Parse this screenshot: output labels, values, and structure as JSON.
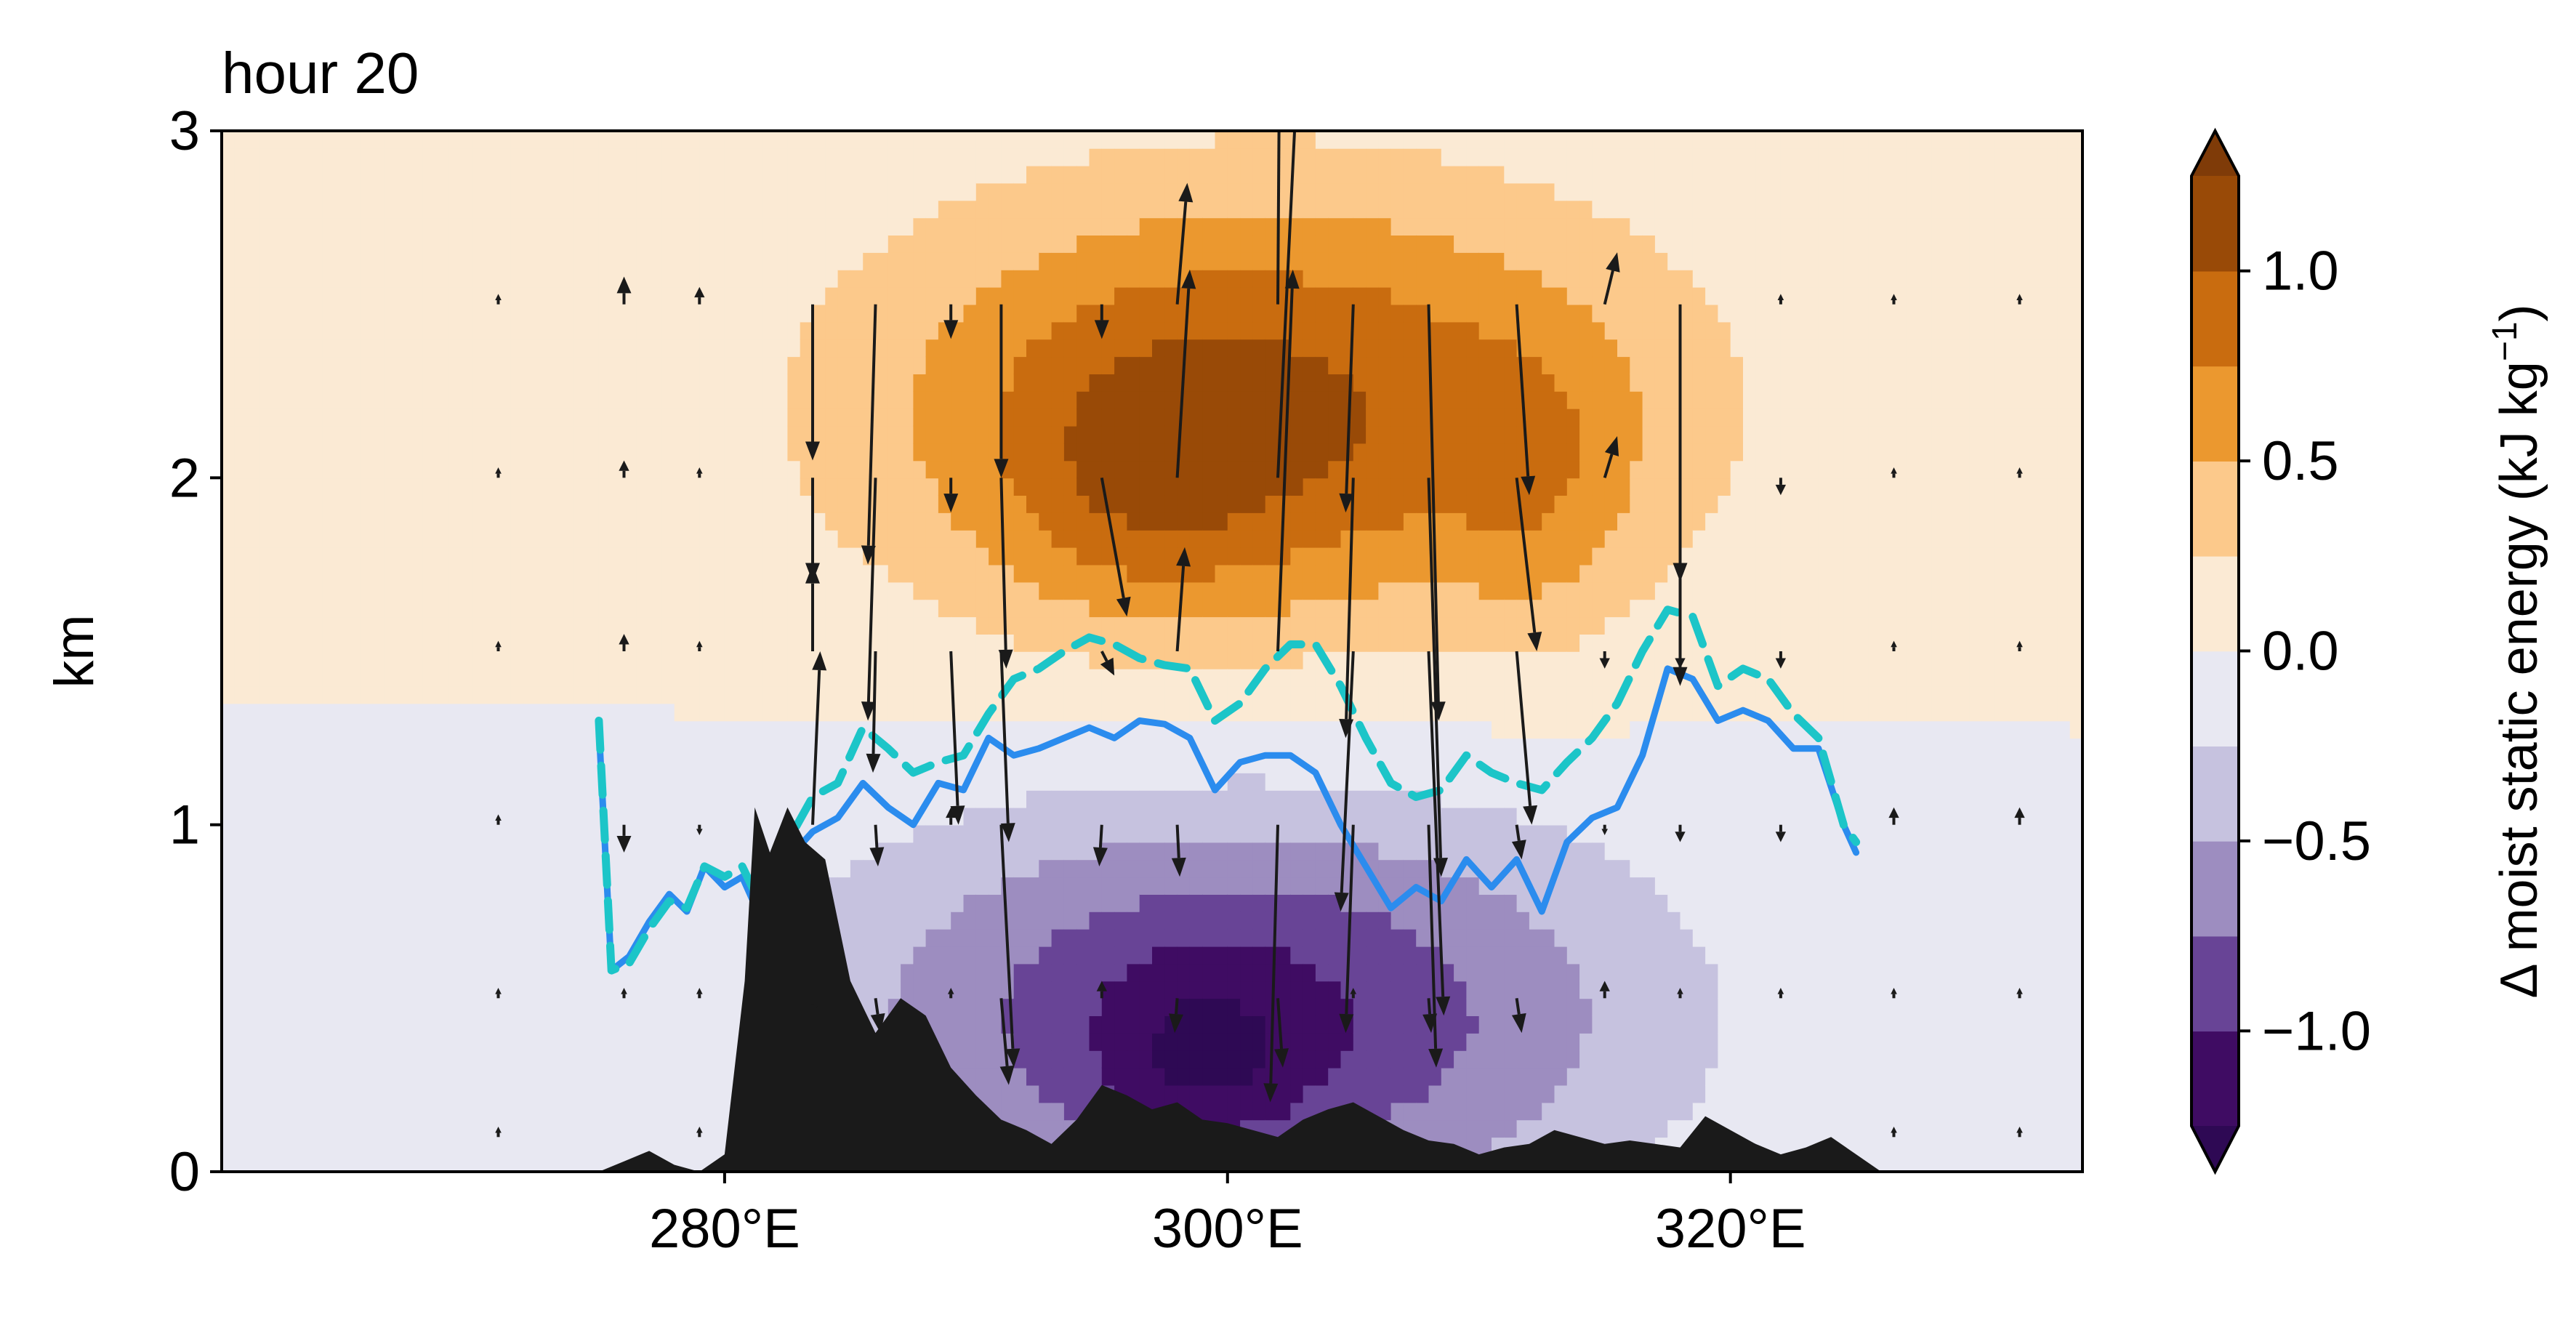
{
  "chart_data": {
    "type": "contour",
    "title": "hour 20",
    "xlabel": "",
    "ylabel": "km",
    "xlim": [
      260,
      334
    ],
    "ylim": [
      0,
      3
    ],
    "x_ticks": [
      280,
      300,
      320
    ],
    "x_tick_labels": [
      "280°E",
      "300°E",
      "320°E"
    ],
    "y_ticks": [
      0,
      1,
      2,
      3
    ],
    "y_tick_labels": [
      "0",
      "1",
      "2",
      "3"
    ],
    "colorbar": {
      "label": "Δ moist static energy (kJ kg⁻¹)",
      "label_main": "Δ moist static energy (kJ kg",
      "label_sup": "−1",
      "label_end": ")",
      "levels": [
        -1.25,
        -1.0,
        -0.75,
        -0.5,
        -0.25,
        0.0,
        0.25,
        0.5,
        0.75,
        1.0,
        1.25
      ],
      "colors": [
        "#3f0c63",
        "#684496",
        "#9d8dc0",
        "#c6c2df",
        "#e8e8f2",
        "#fbead4",
        "#fcc98b",
        "#eb982f",
        "#c96c0f",
        "#994a07"
      ],
      "under_color": "#2e0954",
      "over_color": "#7f3b08",
      "ticks": [
        -1.0,
        -0.5,
        0.0,
        0.5,
        1.0
      ],
      "tick_labels": [
        "−1.0",
        "−0.5",
        "0.0",
        "0.5",
        "1.0"
      ]
    },
    "anomaly_field": {
      "description": "Δ moist static energy blobs (value, lon center, height center km, lon half-width, height half-width km)",
      "blobs": [
        {
          "value": 1.05,
          "lon": 301.5,
          "z": 2.2,
          "dlon": 16.0,
          "dz": 0.65
        },
        {
          "value": 0.3,
          "lon": 296.5,
          "z": 1.95,
          "dlon": 5.5,
          "dz": 0.4
        },
        {
          "value": 0.25,
          "lon": 312.5,
          "z": 1.95,
          "dlon": 3.5,
          "dz": 0.45
        },
        {
          "value": -1.05,
          "lon": 300.5,
          "z": 0.45,
          "dlon": 16.0,
          "dz": 0.62
        },
        {
          "value": -0.35,
          "lon": 299.0,
          "z": 0.3,
          "dlon": 4.0,
          "dz": 0.28
        }
      ]
    },
    "series": [
      {
        "style": "solid",
        "color": "#2b8cee",
        "x": [
          275.0,
          275.5,
          276.2,
          277.0,
          277.8,
          278.5,
          279.2,
          280.0,
          280.7,
          281.5,
          282.5,
          283.5,
          284.5,
          285.5,
          286.5,
          287.5,
          288.5,
          289.5,
          290.5,
          291.5,
          292.5,
          293.5,
          294.5,
          295.5,
          296.5,
          297.5,
          298.5,
          299.5,
          300.5,
          301.5,
          302.5,
          303.5,
          304.5,
          305.5,
          306.5,
          307.5,
          308.5,
          309.5,
          310.5,
          311.5,
          312.5,
          313.5,
          314.5,
          315.5,
          316.5,
          317.5,
          318.5,
          319.5,
          320.5,
          321.5,
          322.5,
          323.5,
          324.5,
          325.0
        ],
        "y": [
          1.28,
          0.58,
          0.62,
          0.72,
          0.8,
          0.75,
          0.88,
          0.82,
          0.85,
          0.72,
          0.9,
          0.98,
          1.02,
          1.12,
          1.05,
          1.0,
          1.12,
          1.1,
          1.25,
          1.2,
          1.22,
          1.25,
          1.28,
          1.25,
          1.3,
          1.29,
          1.25,
          1.1,
          1.18,
          1.2,
          1.2,
          1.15,
          1.0,
          0.88,
          0.76,
          0.82,
          0.78,
          0.9,
          0.82,
          0.9,
          0.75,
          0.95,
          1.02,
          1.05,
          1.2,
          1.45,
          1.42,
          1.3,
          1.33,
          1.3,
          1.22,
          1.22,
          1.0,
          0.92
        ]
      },
      {
        "style": "dashed",
        "color": "#1cc5c8",
        "x": [
          275.0,
          275.5,
          276.2,
          277.0,
          277.8,
          278.5,
          279.2,
          280.0,
          280.7,
          281.5,
          282.5,
          283.5,
          284.5,
          285.5,
          286.5,
          287.5,
          288.5,
          289.5,
          290.5,
          291.5,
          292.5,
          293.5,
          294.5,
          295.5,
          296.5,
          297.5,
          298.5,
          299.5,
          300.5,
          301.5,
          302.5,
          303.5,
          304.5,
          305.5,
          306.5,
          307.5,
          308.5,
          309.5,
          310.5,
          311.5,
          312.5,
          313.5,
          314.5,
          315.5,
          316.5,
          317.5,
          318.5,
          319.5,
          320.5,
          321.5,
          322.5,
          323.5,
          324.5,
          325.0
        ],
        "y": [
          1.3,
          0.58,
          0.6,
          0.7,
          0.78,
          0.76,
          0.88,
          0.85,
          0.88,
          0.76,
          0.95,
          1.08,
          1.12,
          1.28,
          1.22,
          1.15,
          1.18,
          1.2,
          1.32,
          1.42,
          1.45,
          1.5,
          1.54,
          1.52,
          1.48,
          1.46,
          1.45,
          1.3,
          1.35,
          1.45,
          1.52,
          1.52,
          1.4,
          1.25,
          1.12,
          1.08,
          1.1,
          1.2,
          1.15,
          1.12,
          1.1,
          1.18,
          1.25,
          1.35,
          1.5,
          1.62,
          1.6,
          1.4,
          1.45,
          1.42,
          1.32,
          1.25,
          1.0,
          0.95
        ]
      }
    ],
    "terrain": {
      "color": "#1a1a1a",
      "x": [
        260,
        275.0,
        276.0,
        277.0,
        278.0,
        279.0,
        280.0,
        280.8,
        281.2,
        281.8,
        282.5,
        283.2,
        284.0,
        285.0,
        286.0,
        287.0,
        288.0,
        289.0,
        290.0,
        291.0,
        292.0,
        293.0,
        294.0,
        295.0,
        296.0,
        297.0,
        298.0,
        299.0,
        300.0,
        301.0,
        302.0,
        303.0,
        304.0,
        305.0,
        306.0,
        307.0,
        308.0,
        309.0,
        310.0,
        311.0,
        312.0,
        313.0,
        314.0,
        315.0,
        316.0,
        317.0,
        318.0,
        319.0,
        320.0,
        321.0,
        322.0,
        323.0,
        324.0,
        325.0,
        326.0,
        334
      ],
      "y": [
        0,
        0,
        0.03,
        0.06,
        0.02,
        0.0,
        0.05,
        0.55,
        1.05,
        0.92,
        1.05,
        0.95,
        0.9,
        0.55,
        0.4,
        0.5,
        0.45,
        0.3,
        0.22,
        0.15,
        0.12,
        0.08,
        0.15,
        0.25,
        0.22,
        0.18,
        0.2,
        0.15,
        0.14,
        0.12,
        0.1,
        0.15,
        0.18,
        0.2,
        0.16,
        0.12,
        0.09,
        0.08,
        0.05,
        0.07,
        0.08,
        0.12,
        0.1,
        0.08,
        0.09,
        0.08,
        0.07,
        0.16,
        0.12,
        0.08,
        0.05,
        0.07,
        0.1,
        0.05,
        0.0,
        0
      ]
    },
    "arrows": [
      [
        271,
        0.1,
        0,
        0.03
      ],
      [
        271,
        0.5,
        0,
        0.03
      ],
      [
        271,
        1.0,
        0,
        0.03
      ],
      [
        271,
        1.5,
        0,
        0.03
      ],
      [
        271,
        2.0,
        0,
        0.03
      ],
      [
        271,
        2.5,
        0,
        0.03
      ],
      [
        276,
        0.5,
        0,
        0.03
      ],
      [
        276,
        1.0,
        0,
        -0.08
      ],
      [
        276,
        1.5,
        0,
        0.05
      ],
      [
        276,
        2.0,
        0,
        0.05
      ],
      [
        276,
        2.5,
        0,
        0.08
      ],
      [
        279,
        0.1,
        0,
        0.03
      ],
      [
        279,
        0.5,
        0,
        0.03
      ],
      [
        279,
        1.0,
        0,
        -0.03
      ],
      [
        279,
        1.5,
        0,
        0.03
      ],
      [
        279,
        2.0,
        0,
        0.03
      ],
      [
        279,
        2.5,
        0,
        0.05
      ],
      [
        283.5,
        0.5,
        0,
        -0.05
      ],
      [
        283.5,
        1.0,
        0.3,
        0.5
      ],
      [
        283.5,
        1.5,
        0,
        0.25
      ],
      [
        283.5,
        2.0,
        0,
        -0.3
      ],
      [
        283.5,
        2.5,
        0,
        -0.45
      ],
      [
        286.0,
        0.5,
        0.2,
        -0.1
      ],
      [
        286.0,
        1.0,
        0.1,
        -0.12
      ],
      [
        286.0,
        1.5,
        -0.1,
        -0.35
      ],
      [
        286.0,
        2.0,
        -0.3,
        -0.7
      ],
      [
        286.0,
        2.5,
        -0.3,
        -0.75
      ],
      [
        289.0,
        0.5,
        0,
        0.03
      ],
      [
        289.0,
        1.0,
        0,
        0.05
      ],
      [
        289.0,
        1.5,
        0.3,
        -0.5
      ],
      [
        289.0,
        2.0,
        0,
        -0.1
      ],
      [
        289.0,
        2.5,
        0,
        -0.1
      ],
      [
        291.0,
        0.5,
        0.3,
        -0.25
      ],
      [
        291.0,
        1.0,
        0.5,
        -0.7
      ],
      [
        291.0,
        1.5,
        0.3,
        -0.55
      ],
      [
        291.0,
        2.0,
        0.2,
        -0.55
      ],
      [
        291.0,
        2.5,
        0,
        -0.5
      ],
      [
        295.0,
        0.5,
        0,
        0.05
      ],
      [
        295.0,
        1.0,
        -0.1,
        -0.12
      ],
      [
        295.0,
        1.5,
        0.5,
        -0.07
      ],
      [
        295.0,
        2.0,
        1.0,
        -0.4
      ],
      [
        295.0,
        2.5,
        0,
        -0.1
      ],
      [
        298.0,
        0.5,
        -0.1,
        -0.1
      ],
      [
        298.0,
        1.0,
        0.1,
        -0.15
      ],
      [
        298.0,
        1.5,
        0.3,
        0.3
      ],
      [
        298.0,
        2.0,
        0.5,
        0.6
      ],
      [
        298.0,
        2.5,
        0.4,
        0.35
      ],
      [
        302.0,
        0.5,
        0.2,
        -0.2
      ],
      [
        302.0,
        1.0,
        -0.3,
        -0.8
      ],
      [
        302.0,
        1.5,
        0.6,
        1.1
      ],
      [
        302.0,
        2.0,
        0.8,
        1.2
      ],
      [
        302.0,
        2.5,
        0.1,
        1.1
      ],
      [
        305.0,
        0.5,
        0,
        0.03
      ],
      [
        305.0,
        1.0,
        -0.3,
        -0.6
      ],
      [
        305.0,
        1.5,
        -0.5,
        -0.75
      ],
      [
        305.0,
        2.0,
        -0.3,
        -0.75
      ],
      [
        305.0,
        2.5,
        -0.3,
        -0.6
      ],
      [
        308.0,
        0.5,
        0.1,
        -0.1
      ],
      [
        308.0,
        1.0,
        0.3,
        -0.7
      ],
      [
        308.0,
        1.5,
        0.6,
        -1.05
      ],
      [
        308.0,
        2.0,
        0.5,
        -1.15
      ],
      [
        308.0,
        2.5,
        0.4,
        -1.2
      ],
      [
        311.5,
        0.5,
        0.2,
        -0.1
      ],
      [
        311.5,
        1.0,
        0.2,
        -0.1
      ],
      [
        311.5,
        1.5,
        0.6,
        -0.5
      ],
      [
        311.5,
        2.0,
        0.8,
        -0.5
      ],
      [
        311.5,
        2.5,
        0.5,
        -0.55
      ],
      [
        315.0,
        0.5,
        0,
        0.05
      ],
      [
        315.0,
        1.0,
        0,
        -0.03
      ],
      [
        315.0,
        1.5,
        0,
        -0.05
      ],
      [
        315.0,
        2.0,
        0.5,
        0.12
      ],
      [
        315.0,
        2.5,
        0.5,
        0.15
      ],
      [
        318.0,
        0.5,
        0,
        0.03
      ],
      [
        318.0,
        1.0,
        0,
        -0.05
      ],
      [
        318.0,
        1.5,
        0,
        -0.05
      ],
      [
        318.0,
        2.0,
        0,
        -0.6
      ],
      [
        318.0,
        2.5,
        0,
        -0.8
      ],
      [
        322.0,
        0.5,
        0,
        0.03
      ],
      [
        322.0,
        1.0,
        0,
        -0.05
      ],
      [
        322.0,
        1.5,
        0,
        -0.05
      ],
      [
        322.0,
        2.0,
        0,
        -0.05
      ],
      [
        322.0,
        2.5,
        0,
        0.03
      ],
      [
        326.5,
        0.1,
        0,
        0.03
      ],
      [
        326.5,
        0.5,
        0,
        0.03
      ],
      [
        326.5,
        1.0,
        0,
        0.05
      ],
      [
        326.5,
        1.5,
        0,
        0.03
      ],
      [
        326.5,
        2.0,
        0,
        0.03
      ],
      [
        326.5,
        2.5,
        0,
        0.03
      ],
      [
        331.5,
        0.1,
        0,
        0.03
      ],
      [
        331.5,
        0.5,
        0,
        0.03
      ],
      [
        331.5,
        1.0,
        0,
        0.05
      ],
      [
        331.5,
        1.5,
        0,
        0.03
      ],
      [
        331.5,
        2.0,
        0,
        0.03
      ],
      [
        331.5,
        2.5,
        0,
        0.03
      ]
    ],
    "arrow_color": "#1a1a1a"
  }
}
